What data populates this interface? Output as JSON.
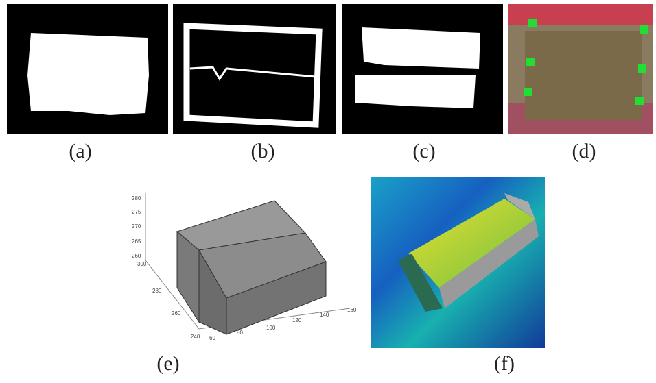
{
  "panels": [
    {
      "label": "(a)"
    },
    {
      "label": "(b)"
    },
    {
      "label": "(c)"
    },
    {
      "label": "(d)"
    },
    {
      "label": "(e)"
    },
    {
      "label": "(f)"
    }
  ],
  "plot_e": {
    "z_ticks": [
      "280",
      "275",
      "270",
      "265",
      "260"
    ],
    "y_ticks": [
      "300",
      "280",
      "260",
      "240"
    ],
    "x_ticks": [
      "60",
      "80",
      "100",
      "120",
      "140",
      "160"
    ]
  }
}
